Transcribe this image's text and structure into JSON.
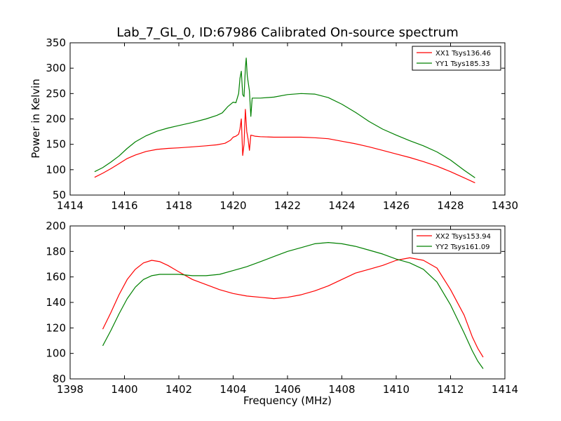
{
  "figure": {
    "title": "Lab_7_GL_0, ID:67986 Calibrated On-source spectrum",
    "ylabel": "Power in Kelvin",
    "xlabel": "Frequency (MHz)"
  },
  "chart_data": [
    {
      "type": "line",
      "xlim": [
        1414,
        1430
      ],
      "ylim": [
        50,
        350
      ],
      "xticks": [
        1414,
        1416,
        1418,
        1420,
        1422,
        1424,
        1426,
        1428,
        1430
      ],
      "yticks": [
        50,
        100,
        150,
        200,
        250,
        300,
        350
      ],
      "legend": "top-right",
      "grid": false,
      "series": [
        {
          "name": "XX1 Tsys136.46",
          "color": "#ff0000",
          "points": [
            [
              1414.9,
              85
            ],
            [
              1415.2,
              93
            ],
            [
              1415.5,
              102
            ],
            [
              1415.8,
              112
            ],
            [
              1416.1,
              122
            ],
            [
              1416.4,
              129
            ],
            [
              1416.8,
              136
            ],
            [
              1417.2,
              140
            ],
            [
              1417.6,
              142
            ],
            [
              1418.0,
              143
            ],
            [
              1418.5,
              145
            ],
            [
              1419.0,
              147
            ],
            [
              1419.4,
              149
            ],
            [
              1419.7,
              152
            ],
            [
              1419.9,
              158
            ],
            [
              1420.0,
              164
            ],
            [
              1420.1,
              166
            ],
            [
              1420.2,
              170
            ],
            [
              1420.25,
              180
            ],
            [
              1420.3,
              200
            ],
            [
              1420.35,
              128
            ],
            [
              1420.4,
              150
            ],
            [
              1420.45,
              219
            ],
            [
              1420.5,
              175
            ],
            [
              1420.55,
              160
            ],
            [
              1420.6,
              138
            ],
            [
              1420.65,
              168
            ],
            [
              1420.8,
              166
            ],
            [
              1421.0,
              165
            ],
            [
              1421.5,
              164
            ],
            [
              1422.0,
              164
            ],
            [
              1422.5,
              164
            ],
            [
              1423.0,
              163
            ],
            [
              1423.5,
              161
            ],
            [
              1424.0,
              156
            ],
            [
              1424.5,
              151
            ],
            [
              1425.0,
              145
            ],
            [
              1425.5,
              138
            ],
            [
              1426.0,
              131
            ],
            [
              1426.5,
              124
            ],
            [
              1427.0,
              116
            ],
            [
              1427.5,
              107
            ],
            [
              1428.0,
              96
            ],
            [
              1428.5,
              84
            ],
            [
              1428.9,
              74
            ]
          ]
        },
        {
          "name": "YY1 Tsys185.33",
          "color": "#008000",
          "points": [
            [
              1414.9,
              96
            ],
            [
              1415.2,
              104
            ],
            [
              1415.5,
              115
            ],
            [
              1415.8,
              127
            ],
            [
              1416.1,
              142
            ],
            [
              1416.4,
              155
            ],
            [
              1416.8,
              167
            ],
            [
              1417.2,
              176
            ],
            [
              1417.6,
              182
            ],
            [
              1418.0,
              187
            ],
            [
              1418.5,
              193
            ],
            [
              1419.0,
              200
            ],
            [
              1419.4,
              207
            ],
            [
              1419.6,
              212
            ],
            [
              1419.8,
              224
            ],
            [
              1420.0,
              233
            ],
            [
              1420.1,
              232
            ],
            [
              1420.2,
              250
            ],
            [
              1420.25,
              280
            ],
            [
              1420.3,
              294
            ],
            [
              1420.35,
              248
            ],
            [
              1420.4,
              244
            ],
            [
              1420.45,
              300
            ],
            [
              1420.48,
              320
            ],
            [
              1420.52,
              285
            ],
            [
              1420.6,
              255
            ],
            [
              1420.65,
              205
            ],
            [
              1420.7,
              241
            ],
            [
              1421.0,
              241
            ],
            [
              1421.5,
              243
            ],
            [
              1422.0,
              248
            ],
            [
              1422.5,
              250
            ],
            [
              1423.0,
              249
            ],
            [
              1423.5,
              242
            ],
            [
              1424.0,
              229
            ],
            [
              1424.5,
              213
            ],
            [
              1425.0,
              195
            ],
            [
              1425.5,
              180
            ],
            [
              1426.0,
              168
            ],
            [
              1426.5,
              157
            ],
            [
              1427.0,
              147
            ],
            [
              1427.5,
              135
            ],
            [
              1428.0,
              119
            ],
            [
              1428.5,
              99
            ],
            [
              1428.9,
              84
            ]
          ]
        }
      ]
    },
    {
      "type": "line",
      "xlim": [
        1398,
        1414
      ],
      "ylim": [
        80,
        200
      ],
      "xticks": [
        1398,
        1400,
        1402,
        1404,
        1406,
        1408,
        1410,
        1412,
        1414
      ],
      "yticks": [
        80,
        100,
        120,
        140,
        160,
        180,
        200
      ],
      "legend": "top-right",
      "grid": false,
      "series": [
        {
          "name": "XX2 Tsys153.94",
          "color": "#ff0000",
          "points": [
            [
              1399.2,
              119
            ],
            [
              1399.5,
              132
            ],
            [
              1399.8,
              146
            ],
            [
              1400.1,
              158
            ],
            [
              1400.4,
              166
            ],
            [
              1400.7,
              171
            ],
            [
              1401.0,
              173
            ],
            [
              1401.3,
              172
            ],
            [
              1401.6,
              169
            ],
            [
              1402.0,
              164
            ],
            [
              1402.5,
              158
            ],
            [
              1403.0,
              154
            ],
            [
              1403.5,
              150
            ],
            [
              1404.0,
              147
            ],
            [
              1404.5,
              145
            ],
            [
              1405.0,
              144
            ],
            [
              1405.5,
              143
            ],
            [
              1406.0,
              144
            ],
            [
              1406.5,
              146
            ],
            [
              1407.0,
              149
            ],
            [
              1407.5,
              153
            ],
            [
              1408.0,
              158
            ],
            [
              1408.5,
              163
            ],
            [
              1409.0,
              166
            ],
            [
              1409.5,
              169
            ],
            [
              1410.0,
              173
            ],
            [
              1410.5,
              175
            ],
            [
              1411.0,
              173
            ],
            [
              1411.5,
              167
            ],
            [
              1412.0,
              150
            ],
            [
              1412.5,
              130
            ],
            [
              1412.8,
              113
            ],
            [
              1413.0,
              104
            ],
            [
              1413.2,
              97
            ]
          ]
        },
        {
          "name": "YY2 Tsys161.09",
          "color": "#008000",
          "points": [
            [
              1399.2,
              106
            ],
            [
              1399.5,
              118
            ],
            [
              1399.8,
              131
            ],
            [
              1400.1,
              143
            ],
            [
              1400.4,
              152
            ],
            [
              1400.7,
              158
            ],
            [
              1401.0,
              161
            ],
            [
              1401.3,
              162
            ],
            [
              1401.6,
              162
            ],
            [
              1402.0,
              162
            ],
            [
              1402.5,
              161
            ],
            [
              1403.0,
              161
            ],
            [
              1403.5,
              162
            ],
            [
              1404.0,
              165
            ],
            [
              1404.5,
              168
            ],
            [
              1405.0,
              172
            ],
            [
              1405.5,
              176
            ],
            [
              1406.0,
              180
            ],
            [
              1406.5,
              183
            ],
            [
              1407.0,
              186
            ],
            [
              1407.5,
              187
            ],
            [
              1408.0,
              186
            ],
            [
              1408.5,
              184
            ],
            [
              1409.0,
              181
            ],
            [
              1409.5,
              178
            ],
            [
              1410.0,
              174
            ],
            [
              1410.5,
              171
            ],
            [
              1411.0,
              166
            ],
            [
              1411.5,
              156
            ],
            [
              1412.0,
              138
            ],
            [
              1412.5,
              116
            ],
            [
              1412.8,
              102
            ],
            [
              1413.0,
              94
            ],
            [
              1413.2,
              88
            ]
          ]
        }
      ]
    }
  ]
}
